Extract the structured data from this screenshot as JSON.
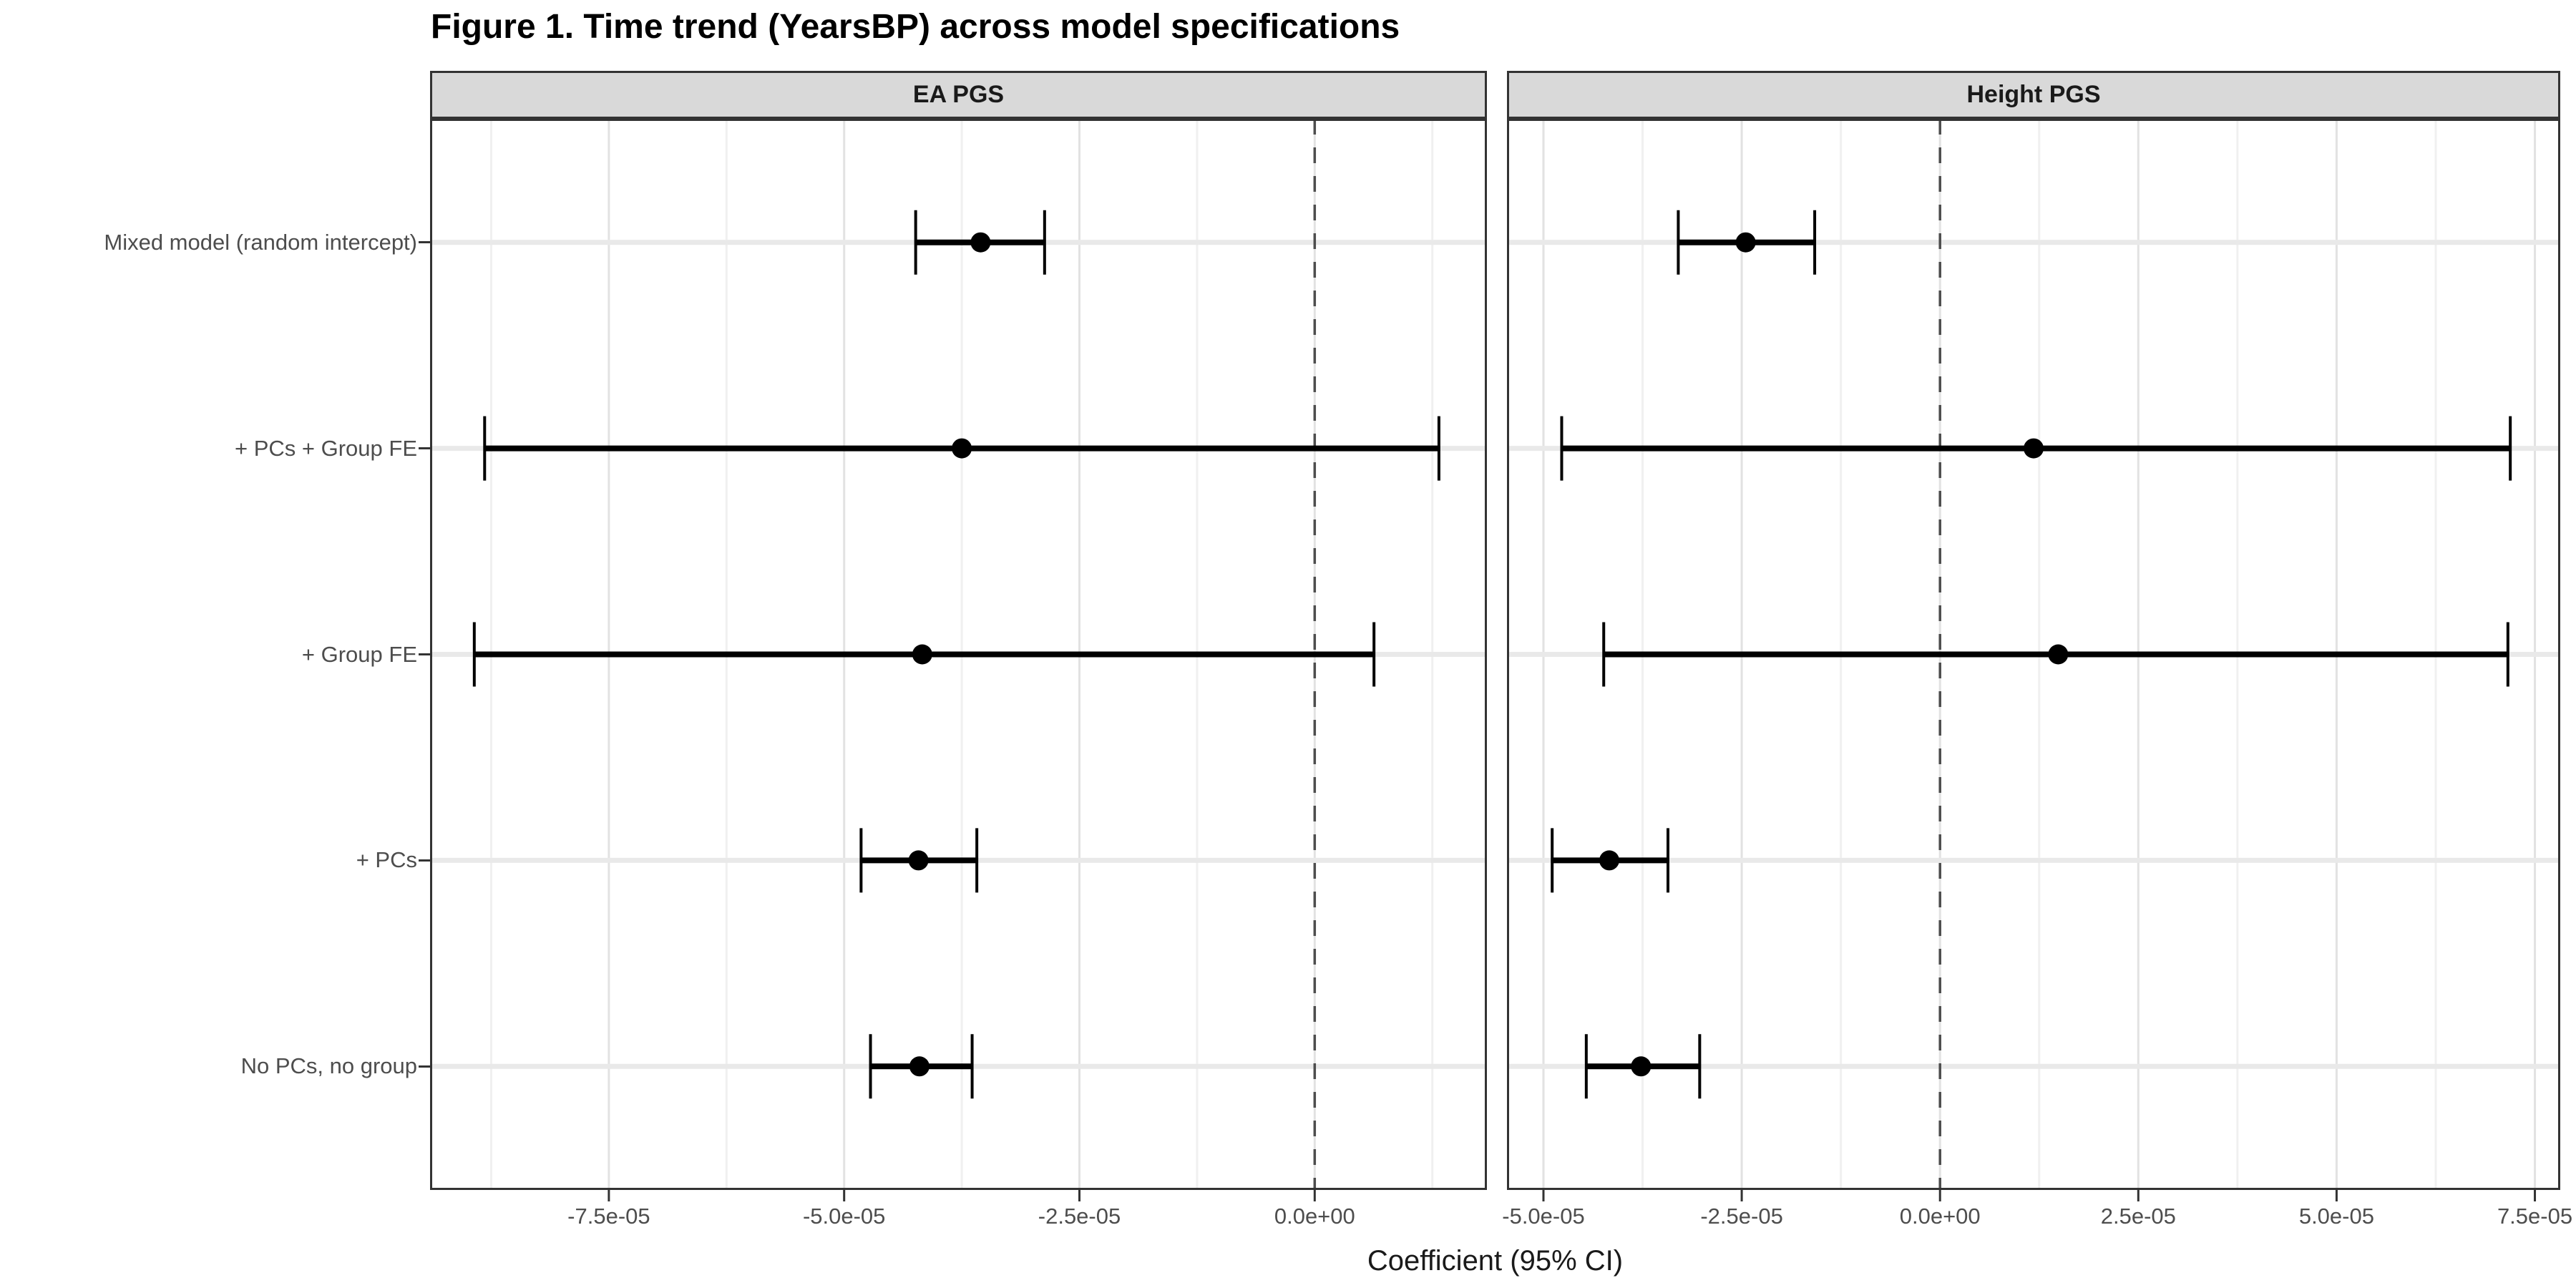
{
  "colors": {
    "background": "#ffffff",
    "strip_fill": "#d9d9d9",
    "panel_border": "#333333",
    "grid_major": "#e2e2e2",
    "grid_minor": "#f0f0f0",
    "grid_row": "#e9e9e9",
    "zero_line": "#4d4d4d",
    "data": "#000000",
    "axis_text": "#4d4d4d",
    "title_text": "#000000"
  },
  "chart_data": {
    "type": "scatter",
    "subtype": "forest-plot-dot-whisker",
    "title": "Figure 1. Time trend (YearsBP) across model specifications",
    "xlabel": "Coefficient (95% CI)",
    "ylabel": "",
    "legend": "none",
    "grid": "on",
    "zero_reference_line": 0,
    "categories_top_to_bottom": [
      "Mixed model (random intercept)",
      "+ PCs + Group FE",
      "+ Group FE",
      "+ PCs",
      "No PCs, no group"
    ],
    "facets": [
      {
        "label": "EA PGS",
        "xlim": [
          -9.4e-05,
          1.83e-05
        ],
        "ticks": [
          {
            "v": -7.5e-05,
            "label": "-7.5e-05"
          },
          {
            "v": -5e-05,
            "label": "-5.0e-05"
          },
          {
            "v": -2.5e-05,
            "label": "-2.5e-05"
          },
          {
            "v": 0.0,
            "label": "0.0e+00"
          }
        ],
        "series": [
          {
            "category": "Mixed model (random intercept)",
            "estimate": -3.55e-05,
            "ci_low": -4.24e-05,
            "ci_high": -2.87e-05
          },
          {
            "category": "+ PCs + Group FE",
            "estimate": -3.75e-05,
            "ci_low": -8.82e-05,
            "ci_high": 1.32e-05
          },
          {
            "category": "+ Group FE",
            "estimate": -4.17e-05,
            "ci_low": -8.93e-05,
            "ci_high": 6.3e-06
          },
          {
            "category": "+ PCs",
            "estimate": -4.21e-05,
            "ci_low": -4.82e-05,
            "ci_high": -3.59e-05
          },
          {
            "category": "No PCs, no group",
            "estimate": -4.2e-05,
            "ci_low": -4.72e-05,
            "ci_high": -3.64e-05
          }
        ]
      },
      {
        "label": "Height PGS",
        "xlim": [
          -5.46e-05,
          7.82e-05
        ],
        "ticks": [
          {
            "v": -5e-05,
            "label": "-5.0e-05"
          },
          {
            "v": -2.5e-05,
            "label": "-2.5e-05"
          },
          {
            "v": 0.0,
            "label": "0.0e+00"
          },
          {
            "v": 2.5e-05,
            "label": "2.5e-05"
          },
          {
            "v": 5e-05,
            "label": "5.0e-05"
          },
          {
            "v": 7.5e-05,
            "label": "7.5e-05"
          }
        ],
        "series": [
          {
            "category": "Mixed model (random intercept)",
            "estimate": -2.45e-05,
            "ci_low": -3.3e-05,
            "ci_high": -1.58e-05
          },
          {
            "category": "+ PCs + Group FE",
            "estimate": 1.18e-05,
            "ci_low": -4.77e-05,
            "ci_high": 7.19e-05
          },
          {
            "category": "+ Group FE",
            "estimate": 1.49e-05,
            "ci_low": -4.24e-05,
            "ci_high": 7.16e-05
          },
          {
            "category": "+ PCs",
            "estimate": -4.17e-05,
            "ci_low": -4.89e-05,
            "ci_high": -3.43e-05
          },
          {
            "category": "No PCs, no group",
            "estimate": -3.77e-05,
            "ci_low": -4.46e-05,
            "ci_high": -3.03e-05
          }
        ]
      }
    ]
  },
  "layout_labels": {
    "facet_gap_note": "two facets share the y axis; y labels shown once on the left"
  }
}
